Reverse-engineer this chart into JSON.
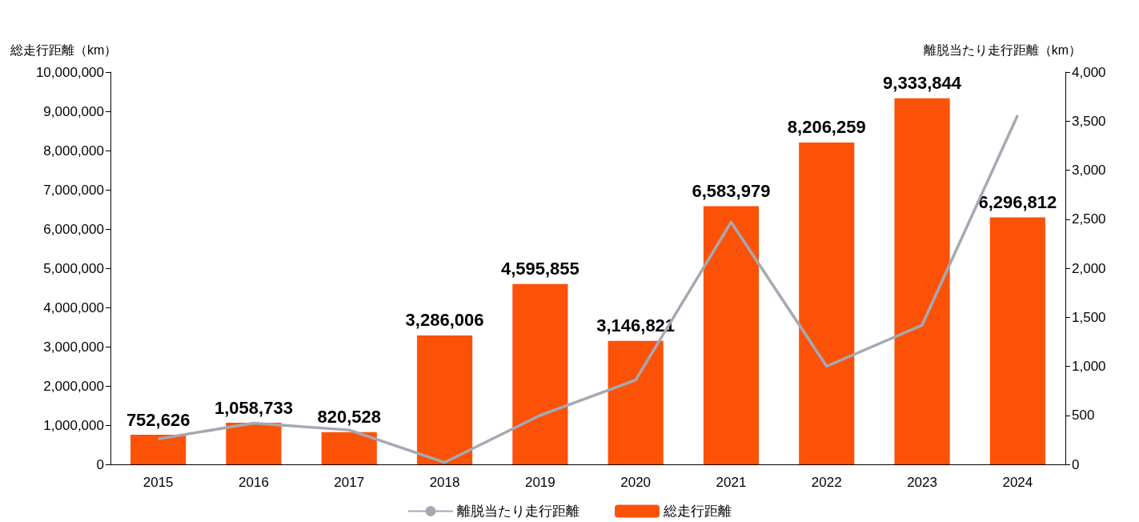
{
  "chart_data": {
    "type": "bar",
    "categories": [
      "2015",
      "2016",
      "2017",
      "2018",
      "2019",
      "2020",
      "2021",
      "2022",
      "2023",
      "2024"
    ],
    "series": [
      {
        "name": "離脱当たり走行距離",
        "type": "line",
        "axis": "y2",
        "color": "#a4a9b3",
        "values": [
          260,
          420,
          350,
          20,
          500,
          860,
          2470,
          1000,
          1420,
          3560
        ]
      },
      {
        "name": "総走行距離",
        "color": "#fc5208",
        "values": [
          752626,
          1058733,
          820528,
          3286006,
          4595855,
          3146821,
          6583979,
          8206259,
          9333844,
          6296812
        ],
        "value_labels": [
          "752,626",
          "1,058,733",
          "820,528",
          "3,286,006",
          "4,595,855",
          "3,146,821",
          "6,583,979",
          "8,206,259",
          "9,333,844",
          "6,296,812"
        ]
      }
    ],
    "ylabel": "総走行距離（km）",
    "y2label": "離脱当たり走行距離（km）",
    "ylim": [
      0,
      10000000
    ],
    "yticks": [
      0,
      {
        "value": 1000000,
        "label": "1,000,000"
      },
      {
        "value": 2000000,
        "label": "2,000,000"
      },
      {
        "value": 3000000,
        "label": "3,000,000"
      },
      {
        "value": 4000000,
        "label": "4,000,000"
      },
      {
        "value": 5000000,
        "label": "5,000,000"
      },
      {
        "value": 6000000,
        "label": "6,000,000"
      },
      {
        "value": 7000000,
        "label": "7,000,000"
      },
      {
        "value": 8000000,
        "label": "8,000,000"
      },
      {
        "value": 9000000,
        "label": "9,000,000"
      },
      {
        "value": 10000000,
        "label": "10,000,000"
      }
    ],
    "y2lim": [
      0,
      4000
    ],
    "y2ticks": [
      0,
      500,
      {
        "value": 1000,
        "label": "1,000"
      },
      {
        "value": 1500,
        "label": "1,500"
      },
      {
        "value": 2000,
        "label": "2,000"
      },
      {
        "value": 2500,
        "label": "2,500"
      },
      {
        "value": 3000,
        "label": "3,000"
      },
      {
        "value": 3500,
        "label": "3,500"
      },
      {
        "value": 4000,
        "label": "4,000"
      }
    ],
    "grid": false,
    "legend": "bottom",
    "marker": "none"
  }
}
